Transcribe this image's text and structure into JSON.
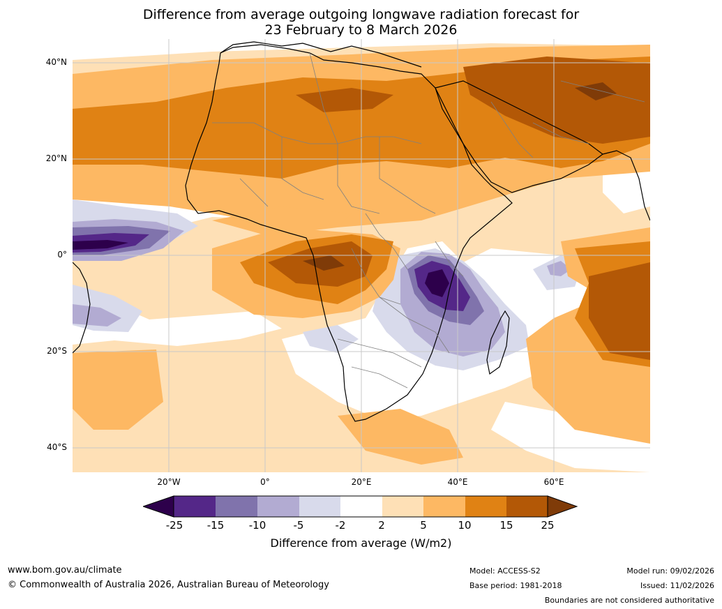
{
  "title": {
    "line1": "Difference from average outgoing longwave radiation forecast for",
    "line2": "23 February to 8 March 2026"
  },
  "map": {
    "latitude_labels": [
      "40°N",
      "20°N",
      "0°",
      "20°S",
      "40°S"
    ],
    "longitude_labels": [
      "20°W",
      "0°",
      "20°E",
      "40°E",
      "60°E"
    ]
  },
  "colorbar": {
    "ticks": [
      "-25",
      "-15",
      "-10",
      "-5",
      "-2",
      "2",
      "5",
      "10",
      "15",
      "25"
    ],
    "label": "Difference from average (W/m2)",
    "colors": {
      "below_min": "#2d004b",
      "c1": "#542788",
      "c2": "#8073ac",
      "c3": "#b2abd2",
      "c4": "#d8daeb",
      "c5": "#ffffff",
      "c6": "#fee0b6",
      "c7": "#fdb863",
      "c8": "#e08214",
      "c9": "#b35806",
      "above_max": "#7f3b08"
    }
  },
  "footer": {
    "website": "www.bom.gov.au/climate",
    "copyright": "© Commonwealth of Australia 2026, Australian Bureau of Meteorology",
    "model": "Model: ACCESS-S2",
    "base_period": "Base period: 1981-2018",
    "model_run": "Model run: 09/02/2026",
    "issued": "Issued: 11/02/2026",
    "disclaimer": "Boundaries are not considered authoritative"
  }
}
